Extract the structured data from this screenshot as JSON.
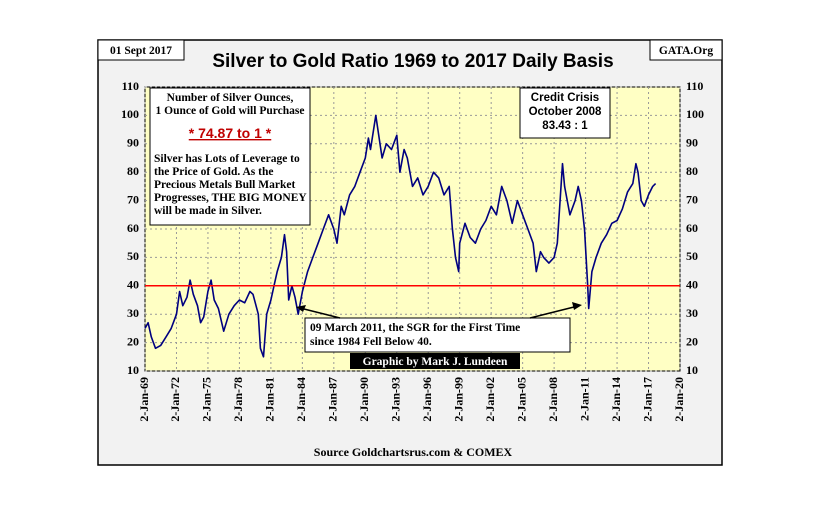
{
  "chart_data": {
    "type": "line",
    "title": "Silver to Gold Ratio 1969 to 2017 Daily Basis",
    "date_label": "01 Sept 2017",
    "brand": "GATA.Org",
    "source": "Source Goldchartsrus.com & COMEX",
    "credit": "Graphic by Mark J. Lundeen",
    "box_heading": [
      "Number of Silver Ounces,",
      "1 Ounce of Gold will Purchase"
    ],
    "box_ratio": "* 74.87 to 1 *",
    "box_text": [
      "Silver has Lots of Leverage to",
      "the Price of Gold.  As the",
      "Precious Metals Bull Market",
      "Progresses,  THE BIG MONEY",
      "will be made in Silver."
    ],
    "crisis_note": [
      "Credit Crisis",
      "October 2008",
      "83.43 : 1"
    ],
    "march_note": [
      "09 March 2011, the SGR for the First Time",
      "since 1984 Fell Below  40."
    ],
    "hline": 40,
    "hline_color": "#ff0000",
    "grid": true,
    "xlim": [
      1969,
      2020
    ],
    "xticks": [
      {
        "value": 1969,
        "label": "2-Jan-69"
      },
      {
        "value": 1972,
        "label": "2-Jan-72"
      },
      {
        "value": 1975,
        "label": "2-Jan-75"
      },
      {
        "value": 1978,
        "label": "2-Jan-78"
      },
      {
        "value": 1981,
        "label": "2-Jan-81"
      },
      {
        "value": 1984,
        "label": "2-Jan-84"
      },
      {
        "value": 1987,
        "label": "2-Jan-87"
      },
      {
        "value": 1990,
        "label": "2-Jan-90"
      },
      {
        "value": 1993,
        "label": "2-Jan-93"
      },
      {
        "value": 1996,
        "label": "2-Jan-96"
      },
      {
        "value": 1999,
        "label": "2-Jan-99"
      },
      {
        "value": 2002,
        "label": "2-Jan-02"
      },
      {
        "value": 2005,
        "label": "2-Jan-05"
      },
      {
        "value": 2008,
        "label": "2-Jan-08"
      },
      {
        "value": 2011,
        "label": "2-Jan-11"
      },
      {
        "value": 2014,
        "label": "2-Jan-14"
      },
      {
        "value": 2017,
        "label": "2-Jan-17"
      },
      {
        "value": 2020,
        "label": "2-Jan-20"
      }
    ],
    "ylim": [
      10,
      110
    ],
    "yticks": [
      10,
      20,
      30,
      40,
      50,
      60,
      70,
      80,
      90,
      100,
      110
    ],
    "series": [
      {
        "name": "Silver to Gold Ratio",
        "color": "#000080",
        "x": [
          1969.0,
          1969.3,
          1969.6,
          1970,
          1970.5,
          1971,
          1971.5,
          1972,
          1972.3,
          1972.6,
          1973,
          1973.3,
          1973.6,
          1974,
          1974.3,
          1974.6,
          1975,
          1975.3,
          1975.6,
          1976,
          1976.5,
          1977,
          1977.5,
          1978,
          1978.5,
          1979,
          1979.3,
          1979.8,
          1980,
          1980.3,
          1980.6,
          1981,
          1981.3,
          1981.6,
          1982,
          1982.3,
          1982.5,
          1982.7,
          1983,
          1983.3,
          1983.6,
          1984,
          1984.5,
          1985,
          1985.5,
          1986,
          1986.5,
          1987,
          1987.3,
          1987.7,
          1988,
          1988.5,
          1989,
          1989.5,
          1990,
          1990.3,
          1990.5,
          1991,
          1991.2,
          1991.6,
          1992,
          1992.5,
          1993,
          1993.3,
          1993.7,
          1994,
          1994.5,
          1995,
          1995.5,
          1996,
          1996.5,
          1997,
          1997.5,
          1998,
          1998.3,
          1998.6,
          1998.9,
          1999,
          1999.5,
          2000,
          2000.5,
          2001,
          2001.5,
          2002,
          2002.5,
          2003,
          2003.5,
          2004,
          2004.5,
          2005,
          2005.5,
          2006,
          2006.3,
          2006.7,
          2007,
          2007.5,
          2008,
          2008.3,
          2008.8,
          2009,
          2009.5,
          2010,
          2010.3,
          2010.6,
          2010.9,
          2011.2,
          2011.3,
          2011.6,
          2012,
          2012.5,
          2013,
          2013.5,
          2014,
          2014.5,
          2015,
          2015.5,
          2015.8,
          2016,
          2016.3,
          2016.6,
          2017,
          2017.4,
          2017.67
        ],
        "values": [
          25,
          27,
          22,
          18,
          19,
          22,
          25,
          30,
          38,
          33,
          36,
          42,
          37,
          33,
          27,
          29,
          38,
          42,
          35,
          32,
          24,
          30,
          33,
          35,
          34,
          38,
          37,
          30,
          18,
          15,
          30,
          35,
          40,
          45,
          50,
          58,
          52,
          35,
          40,
          36,
          30,
          38,
          45,
          50,
          55,
          60,
          65,
          60,
          55,
          68,
          65,
          72,
          75,
          80,
          85,
          92,
          88,
          100,
          95,
          85,
          90,
          88,
          93,
          80,
          88,
          85,
          75,
          78,
          72,
          75,
          80,
          78,
          72,
          75,
          60,
          50,
          45,
          55,
          62,
          57,
          55,
          60,
          63,
          68,
          65,
          75,
          70,
          62,
          70,
          65,
          60,
          55,
          45,
          52,
          50,
          48,
          50,
          55,
          83,
          75,
          65,
          70,
          75,
          70,
          60,
          40,
          32,
          45,
          50,
          55,
          58,
          62,
          63,
          67,
          73,
          76,
          83,
          80,
          70,
          68,
          72,
          75,
          76
        ]
      }
    ]
  }
}
